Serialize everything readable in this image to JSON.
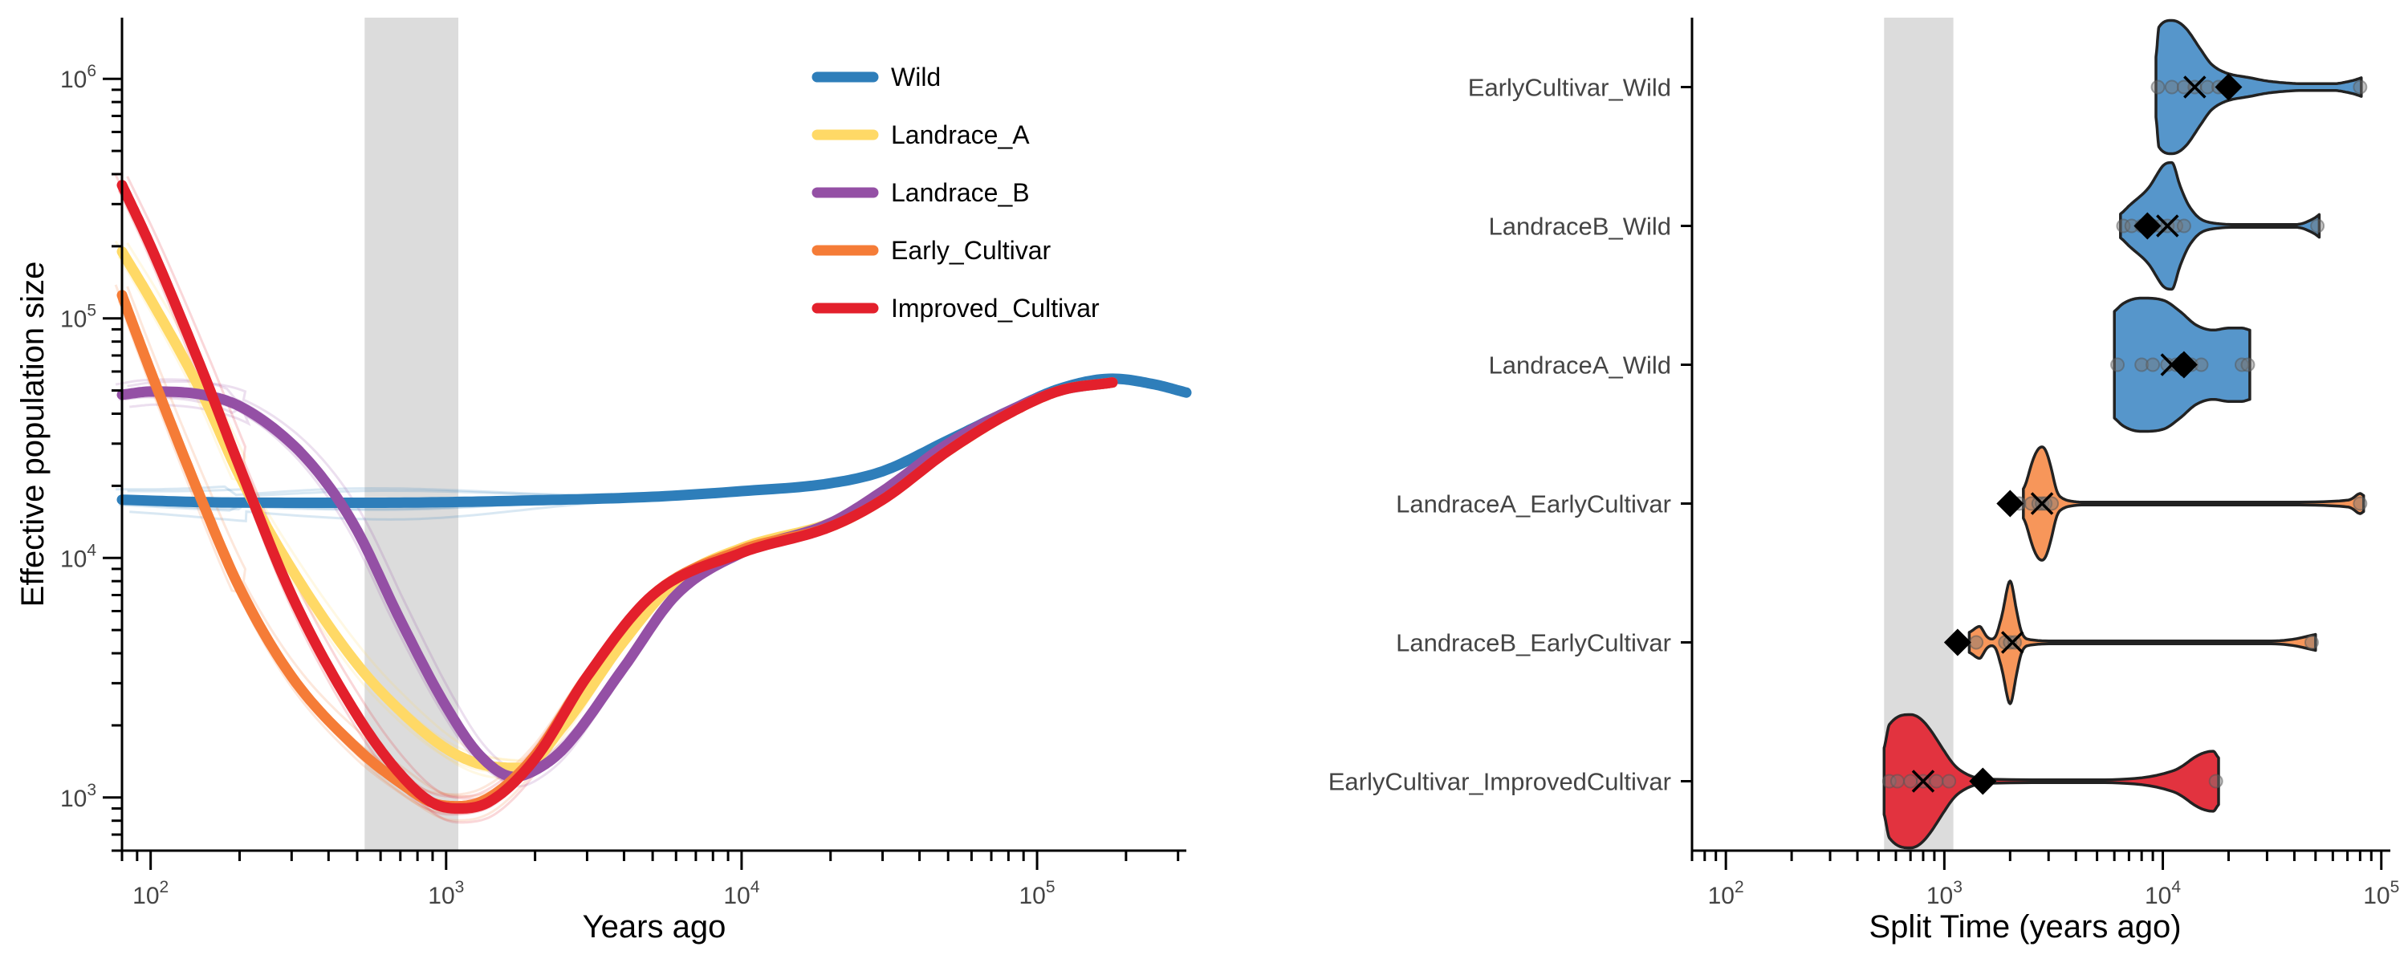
{
  "chart_data": [
    {
      "type": "line",
      "xlabel": "Years ago",
      "ylabel": "Effective population size",
      "x_scale": "log",
      "y_scale": "log",
      "xlim": [
        80,
        320000
      ],
      "ylim": [
        600,
        1800000
      ],
      "x_ticks": [
        100,
        1000,
        10000,
        100000
      ],
      "y_ticks": [
        1000,
        10000,
        100000,
        1000000
      ],
      "x_tick_labels": [
        {
          "base": "10",
          "exp": "2"
        },
        {
          "base": "10",
          "exp": "3"
        },
        {
          "base": "10",
          "exp": "4"
        },
        {
          "base": "10",
          "exp": "5"
        }
      ],
      "y_tick_labels": [
        {
          "base": "10",
          "exp": "3"
        },
        {
          "base": "10",
          "exp": "4"
        },
        {
          "base": "10",
          "exp": "5"
        },
        {
          "base": "10",
          "exp": "6"
        }
      ],
      "shaded_region": [
        530,
        1100
      ],
      "legend_position": "top-right",
      "grid": false,
      "series": [
        {
          "name": "Wild",
          "color": "#2E7EBA",
          "x": [
            80,
            150,
            300,
            600,
            1000,
            2000,
            5000,
            10000,
            20000,
            30000,
            50000,
            80000,
            120000,
            180000,
            250000,
            320000
          ],
          "y": [
            17500,
            17100,
            17000,
            17000,
            17100,
            17400,
            18000,
            19000,
            20500,
            23000,
            31000,
            41000,
            51000,
            56000,
            53000,
            49000
          ]
        },
        {
          "name": "Landrace_A",
          "color": "#FFD966",
          "x": [
            80,
            100,
            150,
            200,
            300,
            500,
            700,
            1000,
            1300,
            1800,
            2500,
            4000,
            6000,
            10000,
            20000,
            30000,
            50000,
            80000,
            120000,
            180000
          ],
          "y": [
            190000,
            120000,
            48000,
            22000,
            9000,
            3600,
            2300,
            1600,
            1380,
            1330,
            2000,
            4500,
            8000,
            11000,
            14000,
            18000,
            28000,
            40000,
            50000,
            54000
          ]
        },
        {
          "name": "Landrace_B",
          "color": "#9450A5",
          "x": [
            80,
            100,
            150,
            200,
            300,
            400,
            500,
            700,
            1000,
            1300,
            1700,
            2000,
            2500,
            4000,
            6000,
            10000,
            20000,
            30000,
            50000,
            80000,
            120000,
            180000
          ],
          "y": [
            48000,
            49500,
            48000,
            43000,
            30000,
            20000,
            13000,
            5500,
            2400,
            1500,
            1220,
            1300,
            1600,
            3500,
            7000,
            10500,
            14000,
            19000,
            30000,
            41000,
            50000,
            54000
          ]
        },
        {
          "name": "Early_Cultivar",
          "color": "#F57C37",
          "x": [
            80,
            100,
            150,
            200,
            300,
            500,
            700,
            900,
            1100,
            1400,
            2000,
            3000,
            5000,
            10000,
            20000,
            30000,
            50000,
            80000,
            120000,
            180000
          ],
          "y": [
            125000,
            60000,
            17000,
            7500,
            3200,
            1600,
            1150,
            950,
            920,
            1000,
            1500,
            3200,
            7000,
            10800,
            13500,
            17500,
            28000,
            40000,
            50000,
            54000
          ]
        },
        {
          "name": "Improved_Cultivar",
          "color": "#E3202C",
          "x": [
            80,
            100,
            150,
            200,
            300,
            500,
            700,
            900,
            1100,
            1400,
            2000,
            3000,
            5000,
            10000,
            20000,
            30000,
            50000,
            80000,
            120000,
            180000
          ],
          "y": [
            360000,
            200000,
            60000,
            24000,
            7000,
            2200,
            1250,
            950,
            900,
            960,
            1450,
            3200,
            7000,
            10500,
            13500,
            17500,
            28000,
            40000,
            50000,
            54000
          ]
        }
      ]
    },
    {
      "type": "violin",
      "xlabel": "Split Time (years ago)",
      "x_scale": "log",
      "xlim": [
        70,
        110000
      ],
      "x_ticks": [
        100,
        1000,
        10000,
        100000
      ],
      "x_tick_labels": [
        {
          "base": "10",
          "exp": "2"
        },
        {
          "base": "10",
          "exp": "3"
        },
        {
          "base": "10",
          "exp": "4"
        },
        {
          "base": "10",
          "exp": "5"
        }
      ],
      "shaded_region": [
        530,
        1100
      ],
      "grid": false,
      "categories": [
        {
          "label": "EarlyCultivar_Wild",
          "color": "#5696CB",
          "diamond": 20000,
          "cross": 14000,
          "points": [
            9500,
            11000,
            12500,
            14000,
            16000,
            18000,
            19000,
            80000
          ],
          "profile": [
            [
              9300,
              0.45
            ],
            [
              9600,
              0.9
            ],
            [
              11000,
              1.0
            ],
            [
              13000,
              0.85
            ],
            [
              15000,
              0.55
            ],
            [
              17000,
              0.32
            ],
            [
              20000,
              0.2
            ],
            [
              25000,
              0.14
            ],
            [
              32000,
              0.08
            ],
            [
              45000,
              0.05
            ],
            [
              60000,
              0.05
            ],
            [
              70000,
              0.08
            ],
            [
              81000,
              0.14
            ]
          ]
        },
        {
          "label": "LandraceB_Wild",
          "color": "#5696CB",
          "diamond": 8500,
          "cross": 10500,
          "points": [
            6600,
            7200,
            8000,
            9000,
            9800,
            10500,
            11500,
            12500,
            51000
          ],
          "profile": [
            [
              6400,
              0.18
            ],
            [
              7000,
              0.3
            ],
            [
              8500,
              0.55
            ],
            [
              10000,
              0.9
            ],
            [
              11000,
              0.95
            ],
            [
              12000,
              0.6
            ],
            [
              13500,
              0.25
            ],
            [
              16000,
              0.06
            ],
            [
              22000,
              0.02
            ],
            [
              40000,
              0.02
            ],
            [
              47000,
              0.08
            ],
            [
              52000,
              0.17
            ]
          ]
        },
        {
          "label": "LandraceA_Wild",
          "color": "#5696CB",
          "diamond": 12500,
          "cross": 11000,
          "points": [
            6200,
            8000,
            9000,
            10500,
            11500,
            12500,
            13500,
            15000,
            23000,
            24500
          ],
          "profile": [
            [
              6000,
              0.8
            ],
            [
              6600,
              0.92
            ],
            [
              8000,
              1.0
            ],
            [
              10000,
              0.97
            ],
            [
              12000,
              0.8
            ],
            [
              14500,
              0.58
            ],
            [
              17000,
              0.52
            ],
            [
              20000,
              0.55
            ],
            [
              23000,
              0.55
            ],
            [
              25000,
              0.52
            ]
          ]
        },
        {
          "label": "LandraceA_EarlyCultivar",
          "color": "#F7965A",
          "diamond": 2000,
          "cross": 2800,
          "points": [
            2200,
            2500,
            2700,
            2800,
            2900,
            3100,
            80000
          ],
          "profile": [
            [
              2300,
              0.22
            ],
            [
              2500,
              0.58
            ],
            [
              2800,
              0.85
            ],
            [
              3100,
              0.5
            ],
            [
              3400,
              0.1
            ],
            [
              4500,
              0.02
            ],
            [
              30000,
              0.02
            ],
            [
              70000,
              0.05
            ],
            [
              80000,
              0.15
            ],
            [
              83000,
              0.12
            ]
          ]
        },
        {
          "label": "LandraceB_EarlyCultivar",
          "color": "#F7965A",
          "diamond": 1150,
          "cross": 2050,
          "points": [
            1400,
            1900,
            2000,
            2100,
            48000
          ],
          "profile": [
            [
              1300,
              0.15
            ],
            [
              1450,
              0.24
            ],
            [
              1650,
              0.05
            ],
            [
              1800,
              0.3
            ],
            [
              2000,
              0.92
            ],
            [
              2150,
              0.45
            ],
            [
              2400,
              0.05
            ],
            [
              3500,
              0.02
            ],
            [
              30000,
              0.02
            ],
            [
              47000,
              0.1
            ],
            [
              50000,
              0.12
            ]
          ]
        },
        {
          "label": "EarlyCultivar_ImprovedCultivar",
          "color": "#E2333F",
          "diamond": 1500,
          "cross": 800,
          "points": [
            560,
            610,
            700,
            800,
            920,
            1050,
            17500
          ],
          "profile": [
            [
              530,
              0.5
            ],
            [
              560,
              0.85
            ],
            [
              700,
              1.0
            ],
            [
              850,
              0.8
            ],
            [
              1000,
              0.45
            ],
            [
              1200,
              0.15
            ],
            [
              1600,
              0.03
            ],
            [
              5000,
              0.02
            ],
            [
              11000,
              0.15
            ],
            [
              14000,
              0.36
            ],
            [
              17000,
              0.45
            ],
            [
              18000,
              0.35
            ]
          ]
        }
      ]
    }
  ]
}
